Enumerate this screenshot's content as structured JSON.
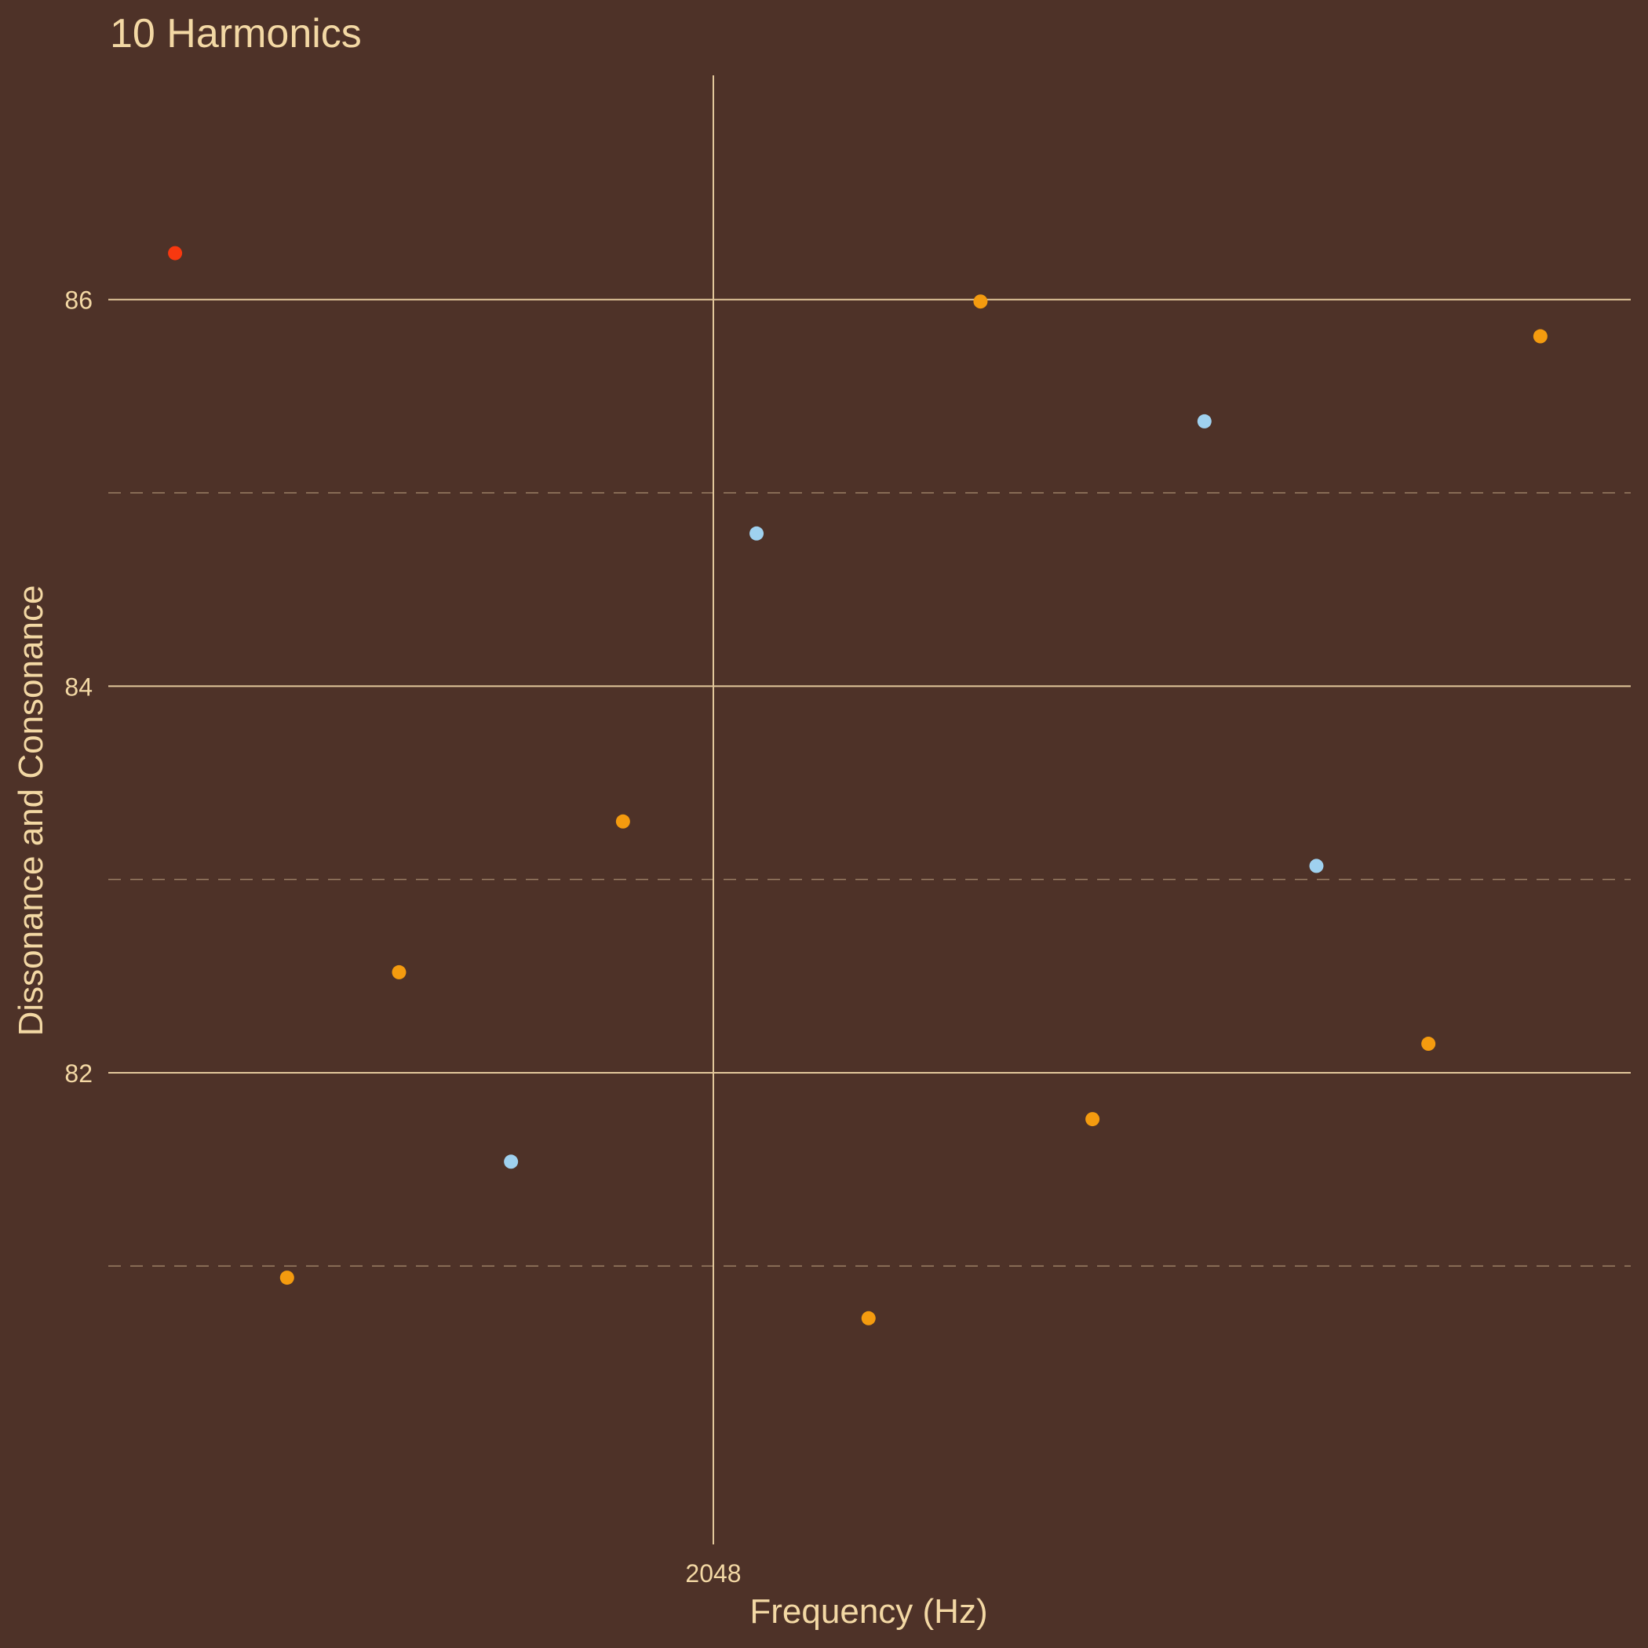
{
  "chart_data": {
    "type": "scatter",
    "title": "10 Harmonics",
    "xlabel": "Frequency (Hz)",
    "ylabel": "Dissonance and Consonance",
    "x_ticks": [
      {
        "value": 2048,
        "label": "2048"
      }
    ],
    "y_ticks": [
      {
        "value": 82,
        "label": "82"
      },
      {
        "value": 84,
        "label": "84"
      },
      {
        "value": 86,
        "label": "86"
      }
    ],
    "y_minor_ticks": [
      81,
      83,
      85
    ],
    "xlim": [
      1740,
      2515
    ],
    "ylim": [
      79.56,
      87.16
    ],
    "grid": true,
    "legend": "none",
    "colors": {
      "background": "#4e3228",
      "text": "#f3d8a4",
      "grid": "#e3c89b",
      "minor_grid": "#9a7e64",
      "accent": "#f8380f",
      "orange": "#f49b0f",
      "blue": "#9fd1ef"
    },
    "points": [
      {
        "x": 1774,
        "y": 86.24,
        "color": "accent"
      },
      {
        "x": 1831,
        "y": 80.94,
        "color": "orange"
      },
      {
        "x": 1888,
        "y": 82.52,
        "color": "orange"
      },
      {
        "x": 1945,
        "y": 81.54,
        "color": "blue"
      },
      {
        "x": 2002,
        "y": 83.3,
        "color": "orange"
      },
      {
        "x": 2070,
        "y": 84.79,
        "color": "blue"
      },
      {
        "x": 2127,
        "y": 80.73,
        "color": "orange"
      },
      {
        "x": 2184,
        "y": 85.99,
        "color": "orange"
      },
      {
        "x": 2241,
        "y": 81.76,
        "color": "orange"
      },
      {
        "x": 2298,
        "y": 85.37,
        "color": "blue"
      },
      {
        "x": 2355,
        "y": 83.07,
        "color": "blue"
      },
      {
        "x": 2412,
        "y": 82.15,
        "color": "orange"
      },
      {
        "x": 2469,
        "y": 85.81,
        "color": "orange"
      }
    ]
  }
}
